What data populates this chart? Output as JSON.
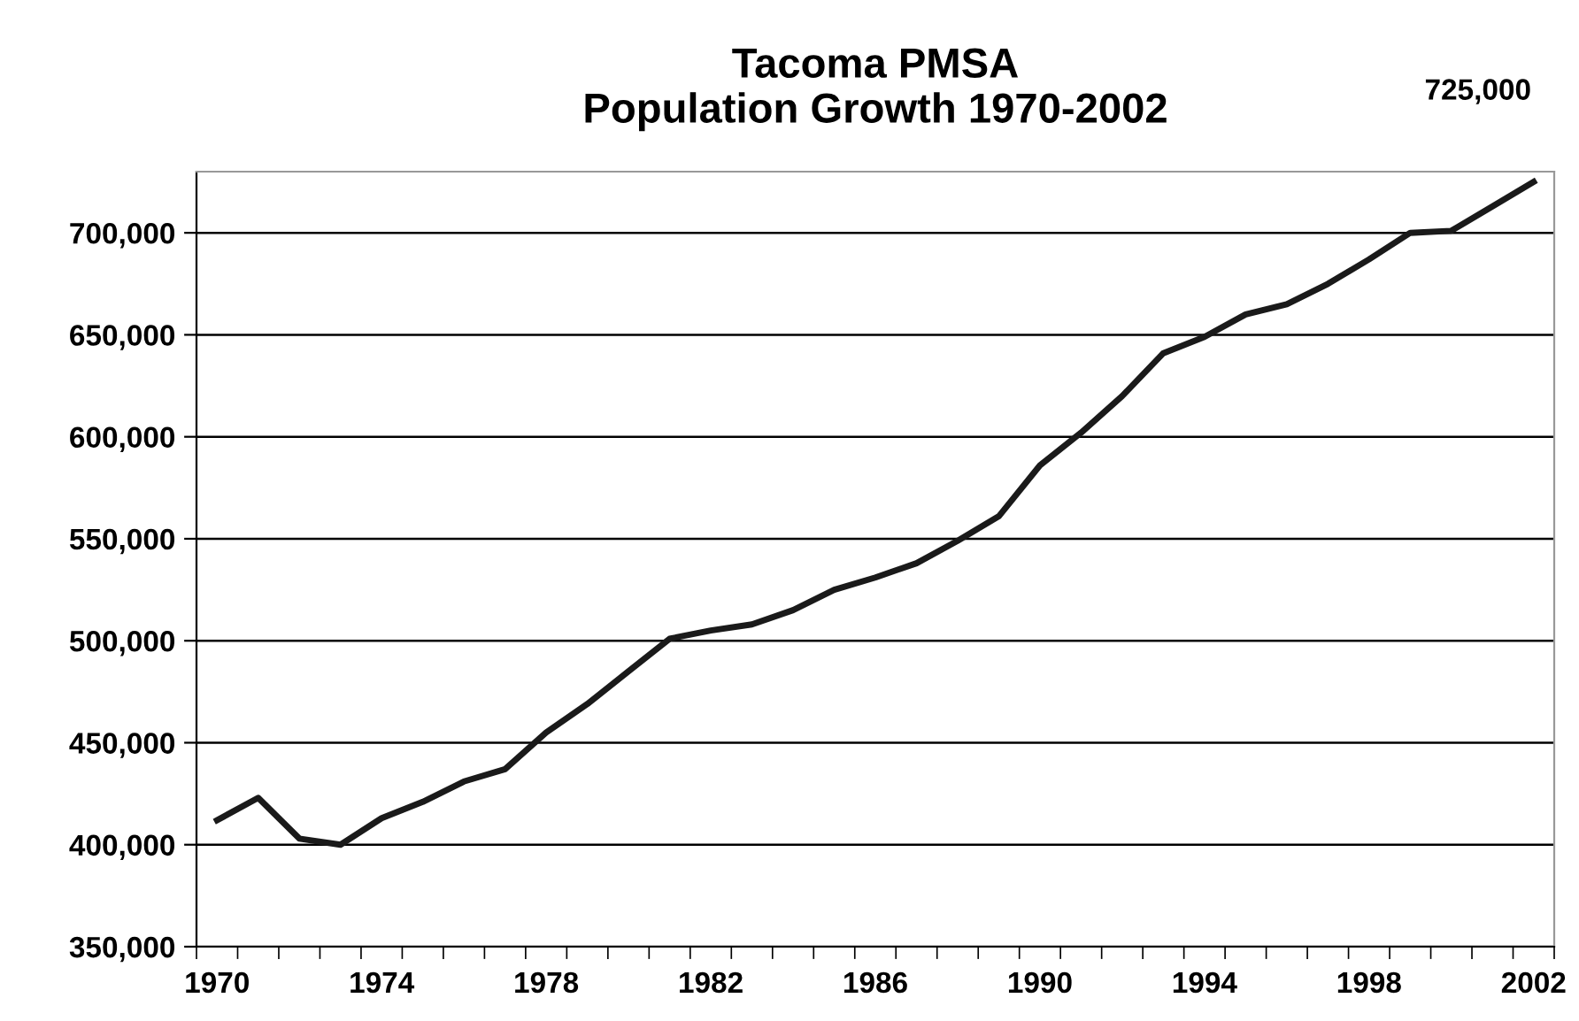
{
  "chart_data": {
    "type": "line",
    "title": "Tacoma PMSA\nPopulation Growth 1970-2002",
    "categories": [
      "1970",
      null,
      null,
      null,
      "1974",
      null,
      null,
      null,
      "1978",
      null,
      null,
      null,
      "1982",
      null,
      null,
      null,
      "1986",
      null,
      null,
      null,
      "1990",
      null,
      null,
      null,
      "1994",
      null,
      null,
      null,
      "1998",
      null,
      null,
      null,
      "2002"
    ],
    "series": [
      {
        "color": "#1a1a1a",
        "values": [
          412000,
          423000,
          403000,
          400000,
          413000,
          421000,
          431000,
          437000,
          455000,
          469000,
          485000,
          501000,
          505000,
          508000,
          515000,
          525000,
          531000,
          538000,
          549000,
          561000,
          586000,
          602000,
          620000,
          641000,
          649000,
          660000,
          665000,
          675000,
          687000,
          700000,
          701000,
          713000,
          725000
        ]
      }
    ],
    "ylim": [
      350000,
      730000
    ],
    "yticks": [
      {
        "value": 350000,
        "label": "350,000"
      },
      {
        "value": 400000,
        "label": "400,000"
      },
      {
        "value": 450000,
        "label": "450,000"
      },
      {
        "value": 500000,
        "label": "500,000"
      },
      {
        "value": 550000,
        "label": "550,000"
      },
      {
        "value": 600000,
        "label": "600,000"
      },
      {
        "value": 650000,
        "label": "650,000"
      },
      {
        "value": 700000,
        "label": "700,000"
      }
    ],
    "grid": "y",
    "marker": "none",
    "line_style": "solid",
    "annotations": [
      "725,000"
    ]
  }
}
